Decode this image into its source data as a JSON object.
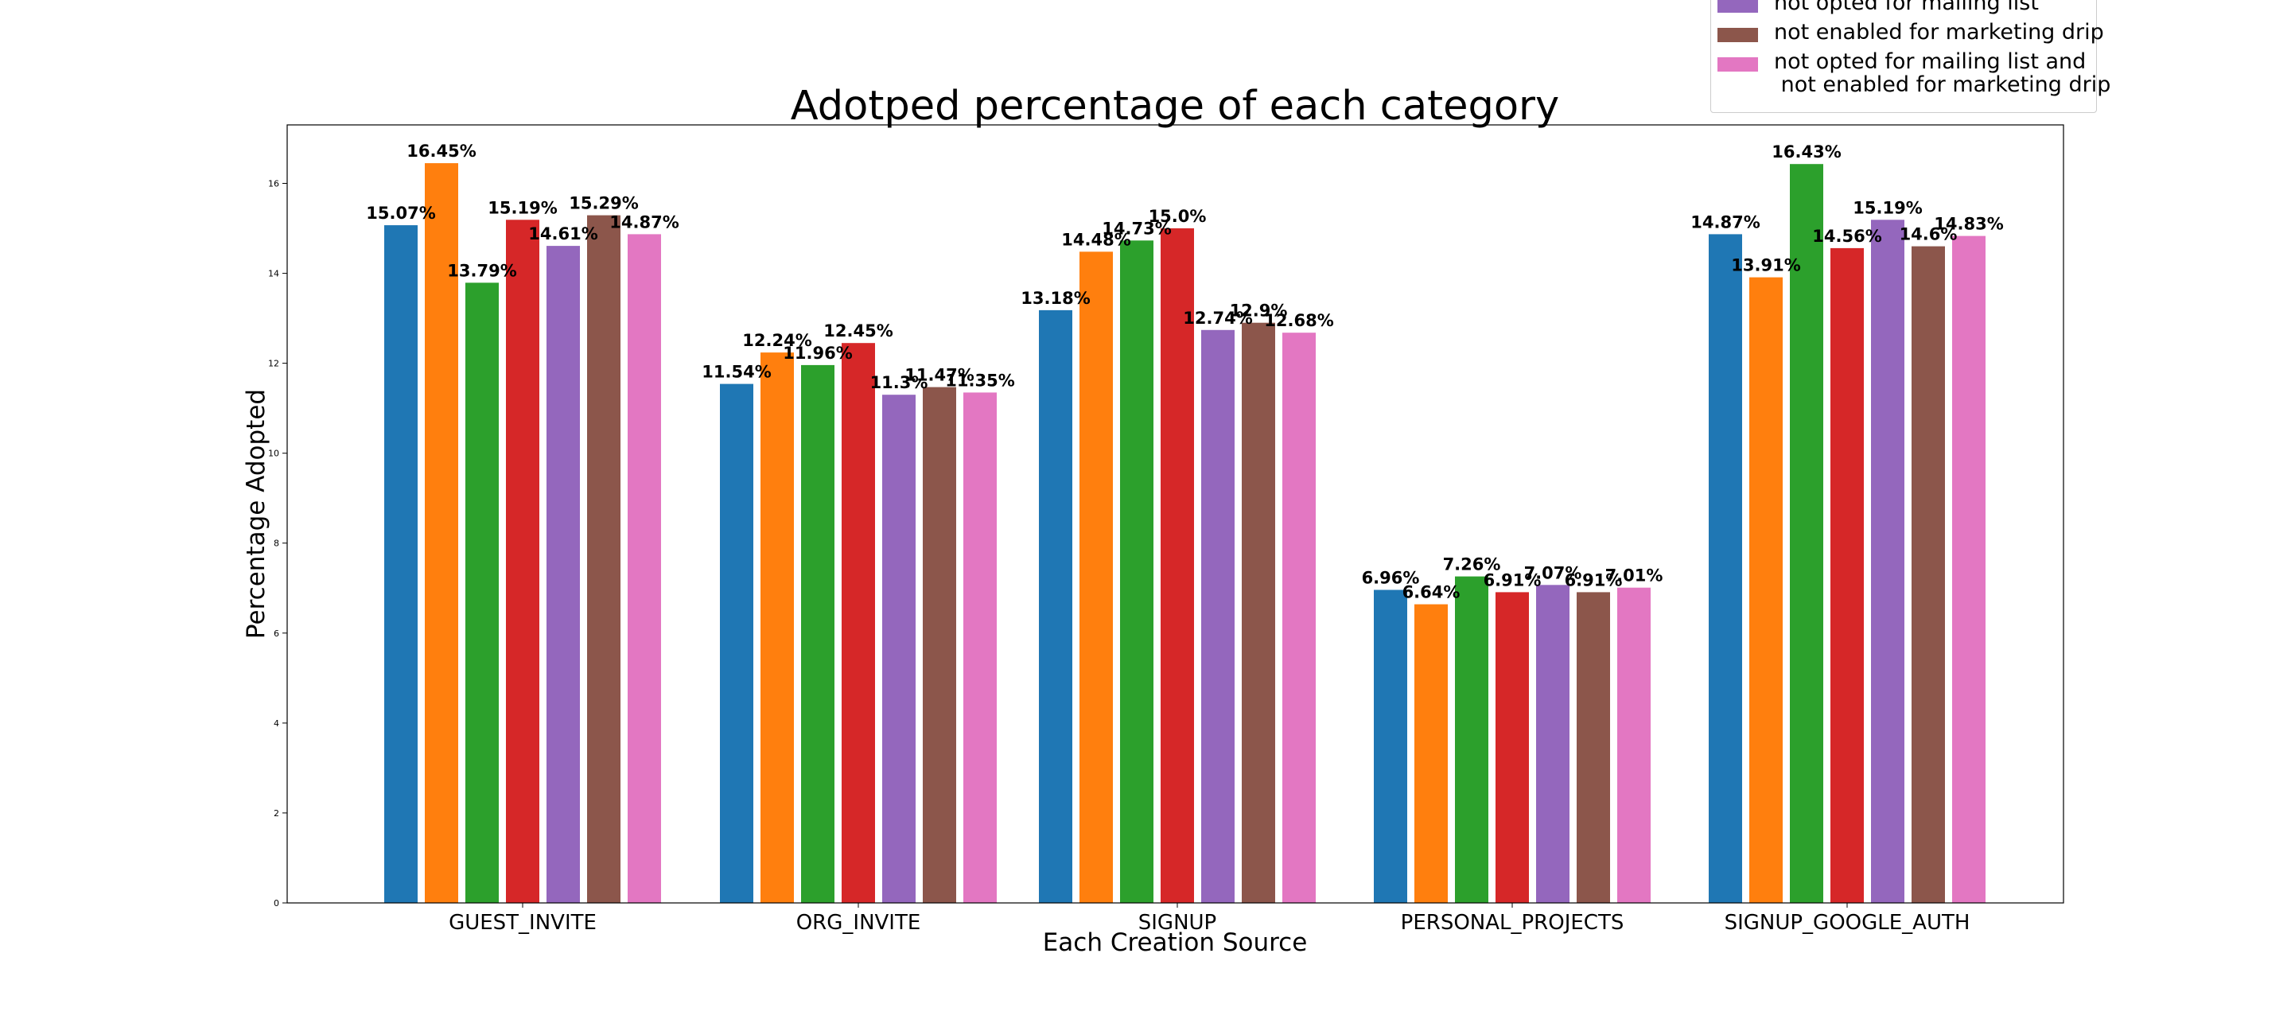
{
  "chart_data": {
    "type": "bar",
    "title": "Adotped percentage of each category",
    "xlabel": "Each Creation Source",
    "ylabel": "Percentage Adopted",
    "ylim": [
      0,
      17.3
    ],
    "yticks": [
      "0",
      "2",
      "4",
      "6",
      "8",
      "10",
      "12",
      "14",
      "16"
    ],
    "categories": [
      "GUEST_INVITE",
      "ORG_INVITE",
      "SIGNUP",
      "PERSONAL_PROJECTS",
      "SIGNUP_GOOGLE_AUTH"
    ],
    "grid": false,
    "legend_position": "top-right",
    "series": [
      {
        "color": "#1f77b4",
        "values": [
          15.07,
          11.54,
          13.18,
          6.96,
          14.87
        ],
        "labels": [
          "15.07%",
          "11.54%",
          "13.18%",
          "6.96%",
          "14.87%"
        ]
      },
      {
        "color": "#ff7f0e",
        "values": [
          16.45,
          12.24,
          14.48,
          6.64,
          13.91
        ],
        "labels": [
          "16.45%",
          "12.24%",
          "14.48%",
          "6.64%",
          "13.91%"
        ]
      },
      {
        "color": "#2ca02c",
        "values": [
          13.79,
          11.96,
          14.73,
          7.26,
          16.43
        ],
        "labels": [
          "13.79%",
          "11.96%",
          "14.73%",
          "7.26%",
          "16.43%"
        ]
      },
      {
        "color": "#d62728",
        "values": [
          15.19,
          12.45,
          15.0,
          6.91,
          14.56
        ],
        "labels": [
          "15.19%",
          "12.45%",
          "15.0%",
          "6.91%",
          "14.56%"
        ]
      },
      {
        "name": "not opted for mailing list",
        "color": "#9467bd",
        "values": [
          14.61,
          11.3,
          12.74,
          7.07,
          15.19
        ],
        "labels": [
          "14.61%",
          "11.3%",
          "12.74%",
          "7.07%",
          "15.19%"
        ]
      },
      {
        "name": "not enabled for marketing drip",
        "color": "#8c564b",
        "values": [
          15.29,
          11.47,
          12.9,
          6.91,
          14.6
        ],
        "labels": [
          "15.29%",
          "11.47%",
          "12.9%",
          "6.91%",
          "14.6%"
        ]
      },
      {
        "name": "not opted for mailing list and\n not enabled for marketing drip",
        "color": "#e377c2",
        "values": [
          14.87,
          11.35,
          12.68,
          7.01,
          14.83
        ],
        "labels": [
          "14.87%",
          "11.35%",
          "12.68%",
          "7.01%",
          "14.83%"
        ]
      }
    ]
  }
}
